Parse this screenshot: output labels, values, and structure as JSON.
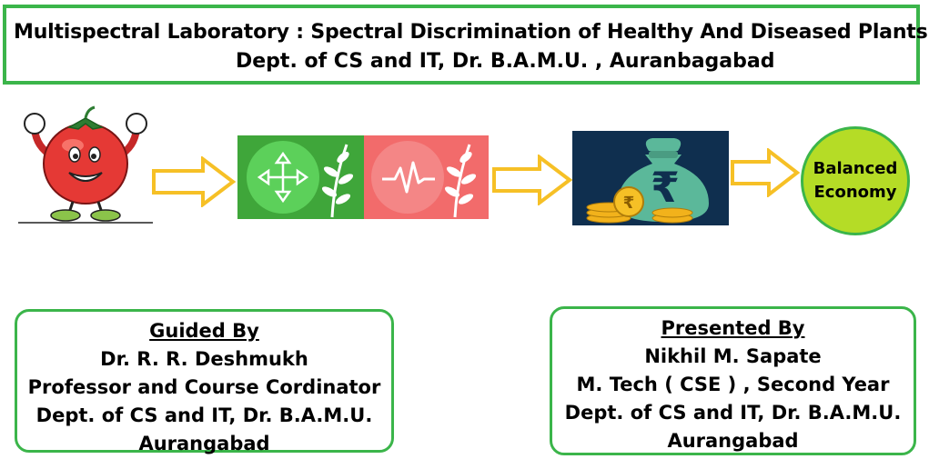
{
  "header": {
    "line1": "Multispectral Laboratory : Spectral Discrimination of Healthy And Diseased Plants",
    "line2": "Dept. of CS and IT, Dr. B.A.M.U. , Auranbagabad"
  },
  "flow": {
    "economy_line1": "Balanced",
    "economy_line2": "Economy",
    "currency_symbol": "₹",
    "arrow_color": "#f6c026",
    "healthy_tile_color": "#3fa63a",
    "diseased_tile_color": "#f26b6b",
    "money_bag_color": "#5bb89a"
  },
  "guided": {
    "heading": "Guided By",
    "name": "Dr. R. R. Deshmukh",
    "role": "Professor and Course Cordinator",
    "dept": "Dept. of CS and IT, Dr. B.A.M.U.",
    "city": "Aurangabad"
  },
  "presented": {
    "heading": "Presented By",
    "name": "Nikhil M. Sapate",
    "role": "M. Tech ( CSE ) , Second Year",
    "dept": "Dept. of CS and IT, Dr. B.A.M.U.",
    "city": "Aurangabad"
  },
  "colors": {
    "accent_green": "#3bb54a",
    "economy_circle": "#b5dc26"
  }
}
